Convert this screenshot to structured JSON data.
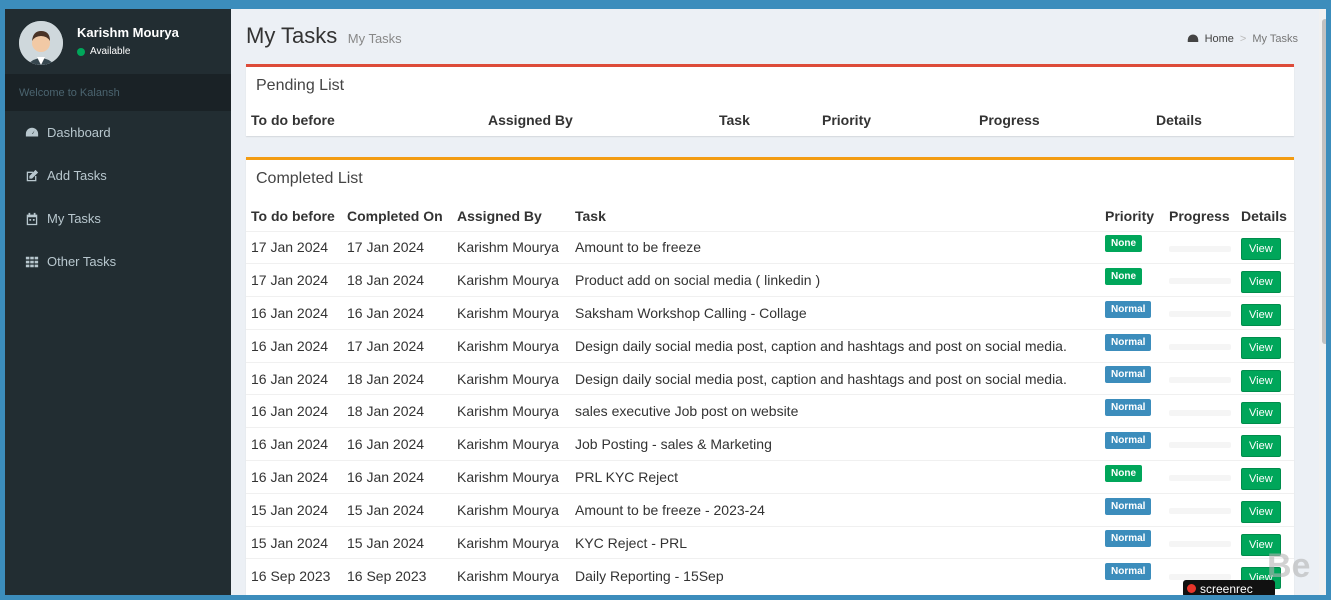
{
  "user": {
    "name": "Karishm Mourya",
    "status": "Available"
  },
  "sidebar": {
    "welcome": "Welcome to Kalansh",
    "items": [
      {
        "label": "Dashboard",
        "icon": "dashboard-icon"
      },
      {
        "label": "Add Tasks",
        "icon": "edit-icon"
      },
      {
        "label": "My Tasks",
        "icon": "calendar-icon"
      },
      {
        "label": "Other Tasks",
        "icon": "grid-icon"
      }
    ]
  },
  "header": {
    "title": "My Tasks",
    "subtitle": "My Tasks"
  },
  "breadcrumb": {
    "home": "Home",
    "current": "My Tasks"
  },
  "pending": {
    "title": "Pending List",
    "columns": [
      "To do before",
      "Assigned By",
      "Task",
      "Priority",
      "Progress",
      "Details"
    ]
  },
  "completed": {
    "title": "Completed List",
    "columns": [
      "To do before",
      "Completed On",
      "Assigned By",
      "Task",
      "Priority",
      "Progress",
      "Details"
    ],
    "rows": [
      {
        "todo": "17 Jan 2024",
        "completed": "17 Jan 2024",
        "assigned": "Karishm Mourya",
        "task": "Amount to be freeze",
        "priority": "None",
        "details": "View"
      },
      {
        "todo": "17 Jan 2024",
        "completed": "18 Jan 2024",
        "assigned": "Karishm Mourya",
        "task": "Product add on social media ( linkedin )",
        "priority": "None",
        "details": "View"
      },
      {
        "todo": "16 Jan 2024",
        "completed": "16 Jan 2024",
        "assigned": "Karishm Mourya",
        "task": "Saksham Workshop Calling - Collage",
        "priority": "Normal",
        "details": "View"
      },
      {
        "todo": "16 Jan 2024",
        "completed": "17 Jan 2024",
        "assigned": "Karishm Mourya",
        "task": "Design daily social media post, caption and hashtags and post on social media.",
        "priority": "Normal",
        "details": "View"
      },
      {
        "todo": "16 Jan 2024",
        "completed": "18 Jan 2024",
        "assigned": "Karishm Mourya",
        "task": "Design daily social media post, caption and hashtags and post on social media.",
        "priority": "Normal",
        "details": "View"
      },
      {
        "todo": "16 Jan 2024",
        "completed": "18 Jan 2024",
        "assigned": "Karishm Mourya",
        "task": "sales executive Job post on website",
        "priority": "Normal",
        "details": "View"
      },
      {
        "todo": "16 Jan 2024",
        "completed": "16 Jan 2024",
        "assigned": "Karishm Mourya",
        "task": "Job Posting - sales & Marketing",
        "priority": "Normal",
        "details": "View"
      },
      {
        "todo": "16 Jan 2024",
        "completed": "16 Jan 2024",
        "assigned": "Karishm Mourya",
        "task": "PRL KYC Reject",
        "priority": "None",
        "details": "View"
      },
      {
        "todo": "15 Jan 2024",
        "completed": "15 Jan 2024",
        "assigned": "Karishm Mourya",
        "task": "Amount to be freeze - 2023-24",
        "priority": "Normal",
        "details": "View"
      },
      {
        "todo": "15 Jan 2024",
        "completed": "15 Jan 2024",
        "assigned": "Karishm Mourya",
        "task": "KYC Reject - PRL",
        "priority": "Normal",
        "details": "View"
      },
      {
        "todo": "16 Sep 2023",
        "completed": "16 Sep 2023",
        "assigned": "Karishm Mourya",
        "task": "Daily Reporting - 15Sep",
        "priority": "Normal",
        "details": "View"
      }
    ]
  },
  "overlay": {
    "recorder": "screenrec",
    "logo": "Be"
  },
  "colors": {
    "primary": "#3c8dbc",
    "success": "#00a65a",
    "danger": "#dd4b39",
    "warning": "#f39c12",
    "sidebar": "#222d32"
  }
}
